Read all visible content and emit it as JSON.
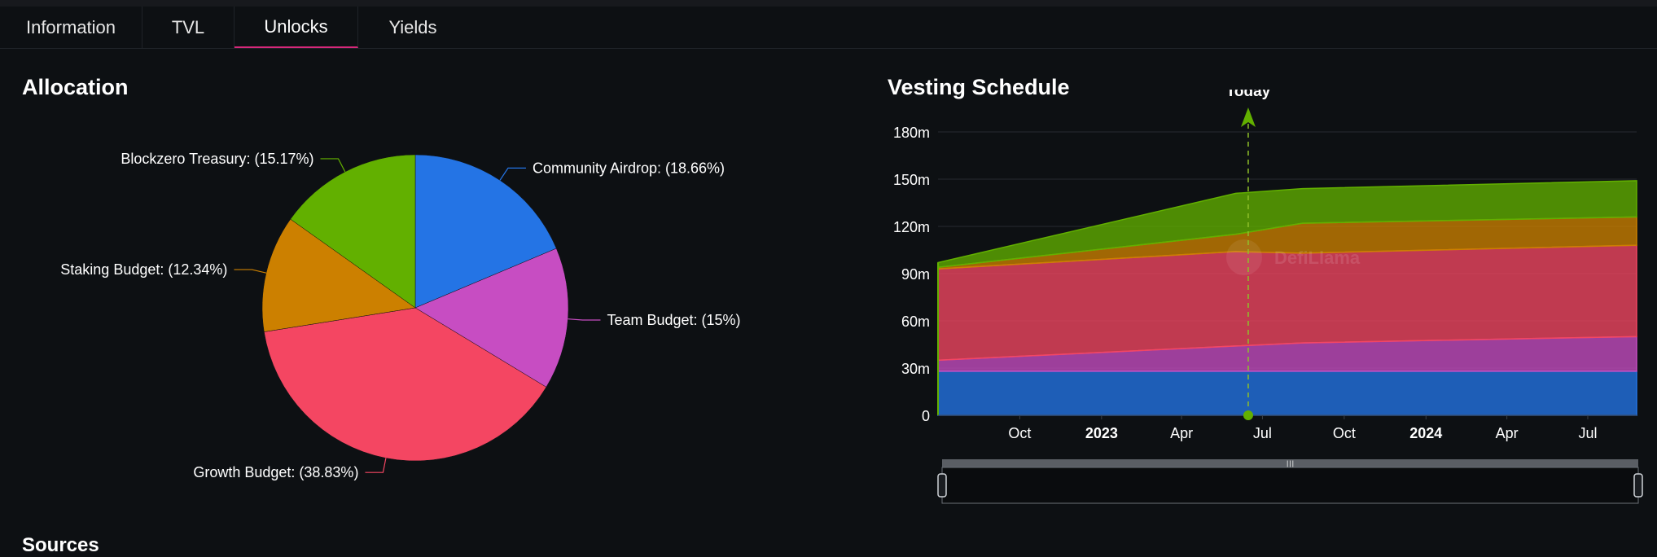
{
  "tabs": [
    {
      "label": "Information",
      "active": false
    },
    {
      "label": "TVL",
      "active": false
    },
    {
      "label": "Unlocks",
      "active": true
    },
    {
      "label": "Yields",
      "active": false
    }
  ],
  "allocation_title": "Allocation",
  "vesting_title": "Vesting Schedule",
  "sources_title": "Sources",
  "watermark": "DefiLlama",
  "chart_data": [
    {
      "type": "pie",
      "title": "Allocation",
      "slices": [
        {
          "label": "Community Airdrop: (18.66%)",
          "value": 18.66,
          "color": "#2474e5"
        },
        {
          "label": "Team Budget: (15%)",
          "value": 15.0,
          "color": "#c74dc2"
        },
        {
          "label": "Growth Budget: (38.83%)",
          "value": 38.83,
          "color": "#f44662"
        },
        {
          "label": "Staking Budget: (12.34%)",
          "value": 12.34,
          "color": "#cc8000"
        },
        {
          "label": "Blockzero Treasury: (15.17%)",
          "value": 15.17,
          "color": "#62b000"
        }
      ]
    },
    {
      "type": "area",
      "stacked": true,
      "title": "Vesting Schedule",
      "x_range": [
        "2022-07-01",
        "2024-08-25"
      ],
      "ylim": [
        0,
        180
      ],
      "y_ticks": [
        "0",
        "30m",
        "60m",
        "90m",
        "120m",
        "150m",
        "180m"
      ],
      "y_tick_values": [
        0,
        30,
        60,
        90,
        120,
        150,
        180
      ],
      "x_ticks": [
        {
          "label": "Oct",
          "date": "2022-10-01",
          "bold": false
        },
        {
          "label": "2023",
          "date": "2023-01-01",
          "bold": true
        },
        {
          "label": "Apr",
          "date": "2023-04-01",
          "bold": false
        },
        {
          "label": "Jul",
          "date": "2023-07-01",
          "bold": false
        },
        {
          "label": "Oct",
          "date": "2023-10-01",
          "bold": false
        },
        {
          "label": "2024",
          "date": "2024-01-01",
          "bold": true
        },
        {
          "label": "Apr",
          "date": "2024-04-01",
          "bold": false
        },
        {
          "label": "Jul",
          "date": "2024-07-01",
          "bold": false
        }
      ],
      "today_label": "Today",
      "today_date": "2023-06-15",
      "dates": [
        "2022-07-01",
        "2023-06-01",
        "2023-08-15",
        "2024-08-25"
      ],
      "series": [
        {
          "color": "#2474e5",
          "values": [
            28,
            28,
            28,
            28
          ]
        },
        {
          "color": "#c74dc2",
          "values": [
            7,
            16,
            18,
            22
          ]
        },
        {
          "color": "#f44662",
          "values": [
            58,
            60,
            57,
            58
          ]
        },
        {
          "color": "#cc8000",
          "values": [
            1,
            11,
            19,
            18
          ]
        },
        {
          "color": "#62b000",
          "values": [
            3,
            26,
            22,
            23
          ]
        }
      ],
      "grid": true,
      "legend": "none"
    }
  ]
}
